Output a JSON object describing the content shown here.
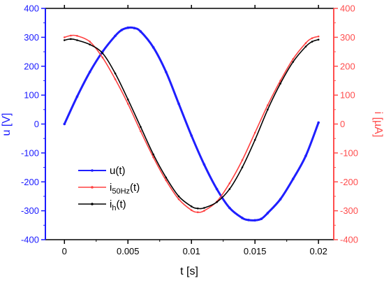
{
  "chart_data": {
    "type": "line",
    "xlabel": "t [s]",
    "ylabel_left": "u [V]",
    "ylabel_right": "i [µA]",
    "xlim": [
      -0.0015,
      0.0212
    ],
    "ylim_left": [
      -400,
      400
    ],
    "ylim_right": [
      -400,
      400
    ],
    "x_ticks": [
      0,
      0.005,
      0.01,
      0.015,
      0.02
    ],
    "x_tick_labels": [
      "0",
      "0.005",
      "0.01",
      "0.015",
      "0.02"
    ],
    "y_left_ticks": [
      -400,
      -300,
      -200,
      -100,
      0,
      100,
      200,
      300,
      400
    ],
    "y_left_tick_labels": [
      "-400",
      "-300",
      "-200",
      "-100",
      "0",
      "100",
      "200",
      "300",
      "400"
    ],
    "y_right_ticks": [
      -400,
      -300,
      -200,
      -100,
      0,
      100,
      200,
      300,
      400
    ],
    "y_right_tick_labels": [
      "-400",
      "-300",
      "-200",
      "-100",
      "0",
      "100",
      "200",
      "300",
      "400"
    ],
    "grid": false,
    "legend_position": "lower-left",
    "colors": {
      "left_axis": "#1a1aff",
      "right_axis": "#ff4d4d",
      "frame": "#000000"
    },
    "series": [
      {
        "name": "u(t)",
        "legend_main": "u(t)",
        "legend_sub": "",
        "legend_tail": "",
        "axis": "left",
        "color": "#1f1fff",
        "width": 3,
        "x": [
          0,
          0.001,
          0.002,
          0.003,
          0.004,
          0.0045,
          0.005,
          0.0055,
          0.006,
          0.007,
          0.008,
          0.009,
          0.01,
          0.011,
          0.012,
          0.013,
          0.014,
          0.0145,
          0.015,
          0.0155,
          0.016,
          0.017,
          0.018,
          0.019,
          0.02
        ],
        "y": [
          0,
          95,
          180,
          250,
          305,
          325,
          333,
          332,
          320,
          265,
          180,
          70,
          -40,
          -140,
          -225,
          -290,
          -325,
          -332,
          -333,
          -328,
          -308,
          -260,
          -190,
          -110,
          5
        ]
      },
      {
        "name": "i50Hz(t)",
        "legend_main": "i",
        "legend_sub": "50Hz",
        "legend_tail": "(t)",
        "axis": "right",
        "color": "#ff4040",
        "width": 1.6,
        "x": [
          0,
          0.0005,
          0.001,
          0.002,
          0.003,
          0.004,
          0.005,
          0.006,
          0.007,
          0.008,
          0.009,
          0.01,
          0.0105,
          0.011,
          0.012,
          0.013,
          0.014,
          0.015,
          0.016,
          0.017,
          0.018,
          0.019,
          0.0195,
          0.02
        ],
        "y": [
          300,
          306,
          305,
          285,
          230,
          155,
          70,
          -25,
          -115,
          -195,
          -260,
          -298,
          -305,
          -300,
          -268,
          -205,
          -125,
          -30,
          65,
          150,
          225,
          280,
          297,
          303
        ]
      },
      {
        "name": "ih(t)",
        "legend_main": "i",
        "legend_sub": "h",
        "legend_tail": "(t)",
        "axis": "right",
        "color": "#000000",
        "width": 1.6,
        "x": [
          0,
          0.0005,
          0.001,
          0.002,
          0.003,
          0.004,
          0.005,
          0.006,
          0.007,
          0.008,
          0.009,
          0.01,
          0.0105,
          0.011,
          0.012,
          0.013,
          0.014,
          0.015,
          0.016,
          0.017,
          0.018,
          0.019,
          0.0195,
          0.02
        ],
        "y": [
          290,
          294,
          290,
          275,
          245,
          175,
          85,
          -10,
          -105,
          -185,
          -250,
          -285,
          -292,
          -290,
          -270,
          -225,
          -150,
          -55,
          50,
          140,
          215,
          268,
          285,
          292
        ]
      }
    ]
  }
}
